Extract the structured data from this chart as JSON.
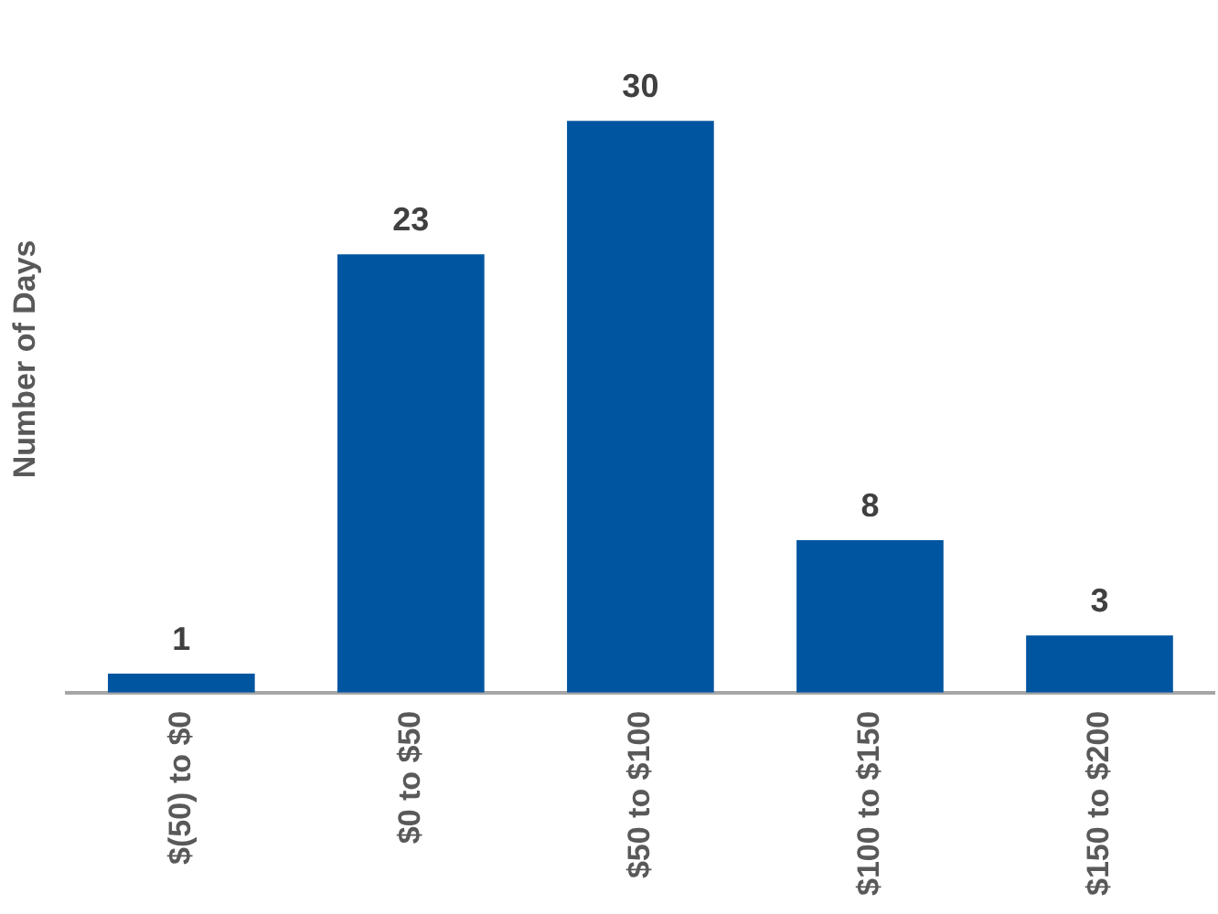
{
  "chart_data": {
    "type": "bar",
    "ylabel": "Number of Days",
    "categories": [
      "$(50) to $0",
      "$0 to $50",
      "$50 to $100",
      "$100 to $150",
      "$150 to $200"
    ],
    "values": [
      1,
      23,
      30,
      8,
      3
    ],
    "color": "#0055a0",
    "data_labels": true,
    "grid": false,
    "legend": false
  }
}
